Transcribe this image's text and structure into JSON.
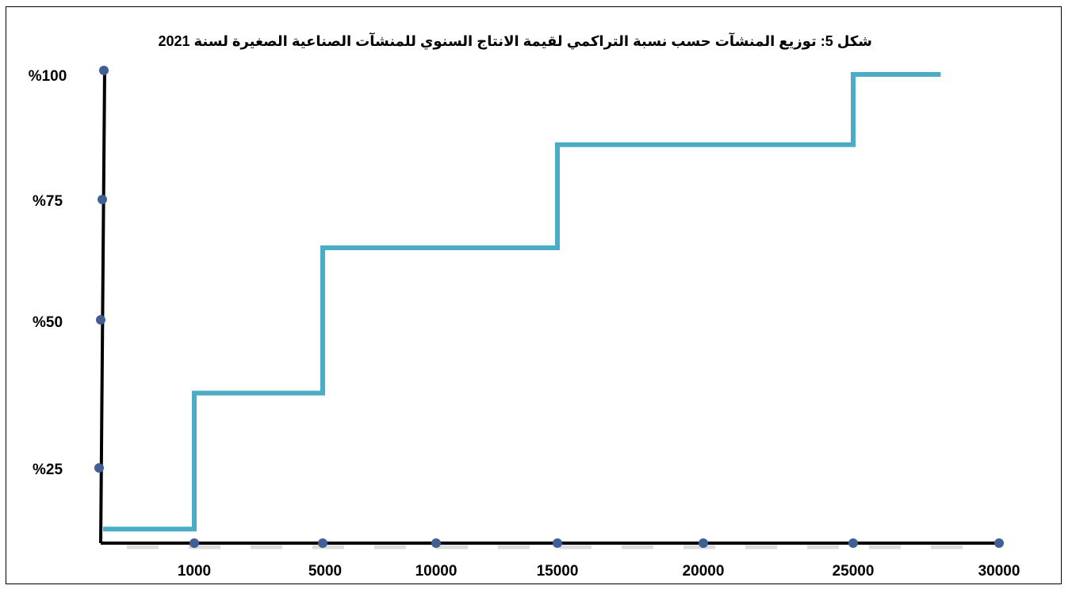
{
  "chart_data": {
    "type": "line",
    "title": "شكل 5: توزيع المنشآت حسب نسبة التراكمي لقيمة الانتاج السنوي للمنشآت الصناعية الصغيرة لسنة 2021",
    "xlabel": "",
    "ylabel": "",
    "x_ticks": [
      "1000",
      "5000",
      "10000",
      "15000",
      "20000",
      "25000",
      "30000"
    ],
    "y_ticks": [
      "%25",
      "%50",
      "%75",
      "%100"
    ],
    "step_type": "step",
    "series": [
      {
        "color": "#4bacc6",
        "x": [
          0,
          1000,
          5000,
          15000,
          25000,
          28000
        ],
        "y": [
          3,
          32,
          63,
          85,
          100,
          100
        ]
      }
    ],
    "grid": false,
    "legend": "none",
    "axis_color": "#000000",
    "marker_color": "#3f5f95"
  }
}
